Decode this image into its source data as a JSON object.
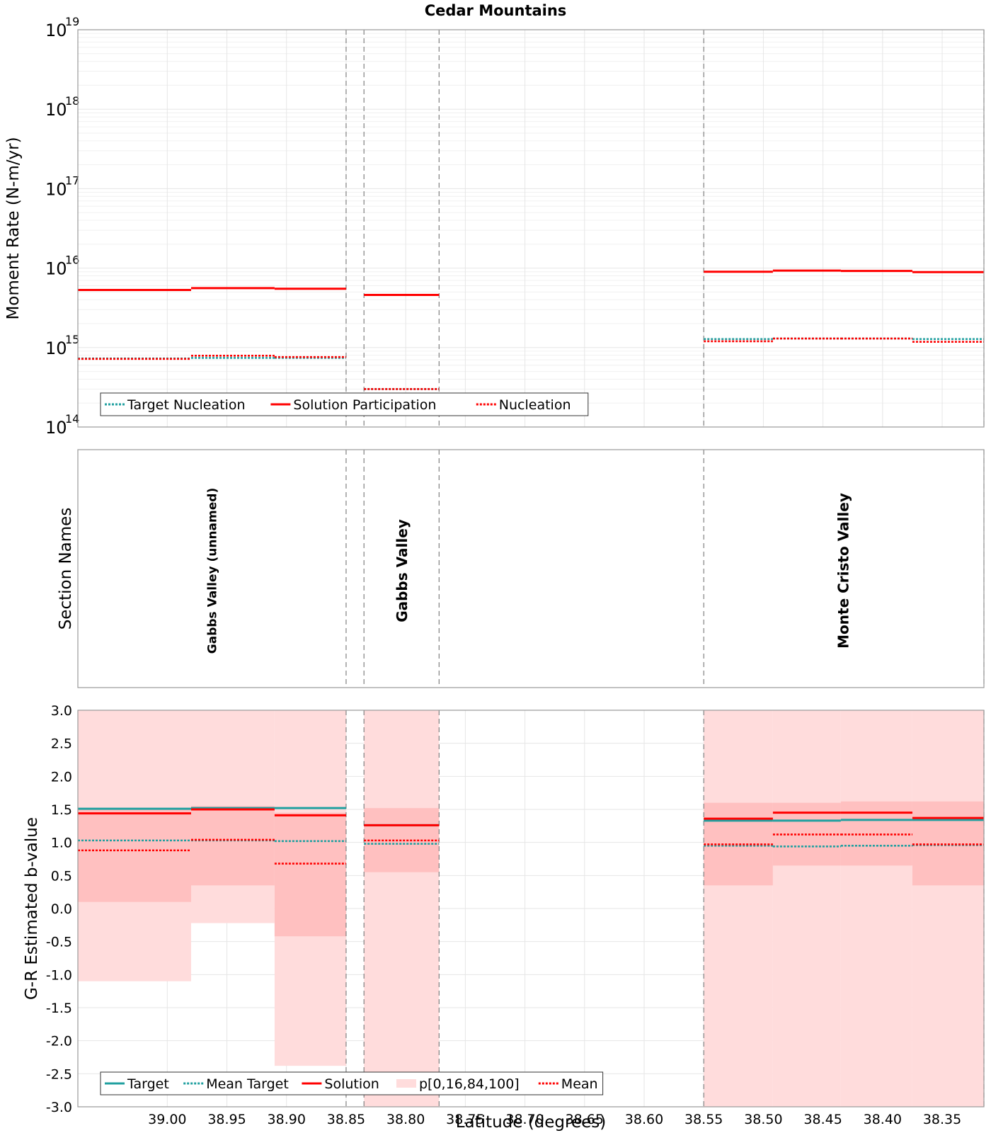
{
  "title": "Cedar Mountains",
  "colors": {
    "target": "#20a0a0",
    "solution": "#ff0000",
    "band_outer": "#ffdcdc",
    "band_inner": "#ffc0c0",
    "divider": "#808080",
    "grid": "#e6e6e6",
    "axis": "#999999"
  },
  "chart_data": [
    {
      "type": "line",
      "id": "moment",
      "ylabel": "Moment Rate (N-m/yr)",
      "yscale": "log",
      "ylim": [
        100000000000000.0,
        1e+19
      ],
      "xlim": [
        39.075,
        38.315
      ],
      "ytick_exponents": [
        "14",
        "15",
        "16",
        "17",
        "18",
        "19"
      ],
      "legend": {
        "placement": "bottom-left",
        "entries": [
          {
            "label": "Target Nucleation",
            "style": "dotted",
            "color": "#20a0a0"
          },
          {
            "label": "Solution Participation",
            "style": "solid",
            "color": "#ff0000"
          },
          {
            "label": "Nucleation",
            "style": "dotted",
            "color": "#ff0000"
          }
        ]
      },
      "series": [
        {
          "name": "Target Nucleation",
          "style": "dotted",
          "color": "#20a0a0",
          "segments": [
            [
              39.075,
              38.98,
              730000000000000.0
            ],
            [
              38.98,
              38.91,
              740000000000000.0
            ],
            [
              38.91,
              38.85,
              740000000000000.0
            ],
            [
              38.835,
              38.772,
              300000000000000.0
            ],
            [
              38.55,
              38.492,
              1280000000000000.0
            ],
            [
              38.492,
              38.435,
              1300000000000000.0
            ],
            [
              38.435,
              38.375,
              1300000000000000.0
            ],
            [
              38.375,
              38.315,
              1280000000000000.0
            ]
          ]
        },
        {
          "name": "Solution Participation",
          "style": "solid",
          "color": "#ff0000",
          "segments": [
            [
              39.075,
              38.98,
              5300000000000000.0
            ],
            [
              38.98,
              38.91,
              5600000000000000.0
            ],
            [
              38.91,
              38.85,
              5500000000000000.0
            ],
            [
              38.835,
              38.772,
              4600000000000000.0
            ],
            [
              38.55,
              38.492,
              9000000000000000.0
            ],
            [
              38.492,
              38.435,
              9300000000000000.0
            ],
            [
              38.435,
              38.375,
              9200000000000000.0
            ],
            [
              38.375,
              38.315,
              8900000000000000.0
            ]
          ]
        },
        {
          "name": "Nucleation",
          "style": "dotted",
          "color": "#ff0000",
          "segments": [
            [
              39.075,
              38.98,
              720000000000000.0
            ],
            [
              38.98,
              38.91,
              790000000000000.0
            ],
            [
              38.91,
              38.85,
              760000000000000.0
            ],
            [
              38.835,
              38.772,
              300000000000000.0
            ],
            [
              38.55,
              38.492,
              1200000000000000.0
            ],
            [
              38.492,
              38.435,
              1300000000000000.0
            ],
            [
              38.435,
              38.375,
              1300000000000000.0
            ],
            [
              38.375,
              38.315,
              1180000000000000.0
            ]
          ]
        }
      ]
    },
    {
      "type": "table",
      "id": "sections",
      "ylabel": "Section Names",
      "xlim": [
        39.075,
        38.315
      ],
      "sections": [
        {
          "name": "Gabbs Valley (unnamed)",
          "x": 38.963
        },
        {
          "name": "Gabbs Valley",
          "x": 38.803
        },
        {
          "name": "Monte Cristo Valley",
          "x": 38.433
        }
      ]
    },
    {
      "type": "line",
      "id": "bvalue",
      "ylabel": "G-R Estimated b-value",
      "xlabel": "Latitude (degrees)",
      "ylim": [
        -3.0,
        3.0
      ],
      "xlim": [
        39.075,
        38.315
      ],
      "yticks": [
        "3.0",
        "2.5",
        "2.0",
        "1.5",
        "1.0",
        "0.5",
        "0.0",
        "-0.5",
        "-1.0",
        "-1.5",
        "-2.0",
        "-2.5",
        "-3.0"
      ],
      "xticks": [
        "39.00",
        "38.95",
        "38.90",
        "38.85",
        "38.80",
        "38.75",
        "38.70",
        "38.65",
        "38.60",
        "38.55",
        "38.50",
        "38.45",
        "38.40",
        "38.35"
      ],
      "legend": {
        "placement": "bottom-left",
        "entries": [
          {
            "label": "Target",
            "style": "solid",
            "color": "#20a0a0"
          },
          {
            "label": "Mean Target",
            "style": "dotted",
            "color": "#20a0a0"
          },
          {
            "label": "Solution",
            "style": "solid",
            "color": "#ff0000"
          },
          {
            "label": "p[0,16,84,100]",
            "style": "band",
            "color": "#ffdcdc"
          },
          {
            "label": "Mean",
            "style": "dotted",
            "color": "#ff0000"
          }
        ]
      },
      "bands": [
        {
          "x0": 39.075,
          "x1": 38.98,
          "p0": -1.1,
          "p16": 0.1,
          "p84": 1.5,
          "p100": 3.0
        },
        {
          "x0": 38.98,
          "x1": 38.91,
          "p0": -0.22,
          "p16": 0.35,
          "p84": 1.55,
          "p100": 3.0
        },
        {
          "x0": 38.91,
          "x1": 38.85,
          "p0": -2.38,
          "p16": -0.42,
          "p84": 1.45,
          "p100": 3.0
        },
        {
          "x0": 38.835,
          "x1": 38.772,
          "p0": -3.0,
          "p16": 0.55,
          "p84": 1.52,
          "p100": 3.0
        },
        {
          "x0": 38.55,
          "x1": 38.492,
          "p0": -3.0,
          "p16": 0.35,
          "p84": 1.6,
          "p100": 3.0
        },
        {
          "x0": 38.492,
          "x1": 38.435,
          "p0": -3.0,
          "p16": 0.65,
          "p84": 1.6,
          "p100": 3.0
        },
        {
          "x0": 38.435,
          "x1": 38.375,
          "p0": -3.0,
          "p16": 0.65,
          "p84": 1.62,
          "p100": 3.0
        },
        {
          "x0": 38.375,
          "x1": 38.315,
          "p0": -3.0,
          "p16": 0.35,
          "p84": 1.62,
          "p100": 3.0
        }
      ],
      "series": [
        {
          "name": "Target",
          "style": "solid",
          "color": "#20a0a0",
          "segments": [
            [
              39.075,
              38.98,
              1.51
            ],
            [
              38.98,
              38.91,
              1.52
            ],
            [
              38.91,
              38.85,
              1.52
            ],
            [
              38.835,
              38.772,
              1.26
            ],
            [
              38.55,
              38.492,
              1.33
            ],
            [
              38.492,
              38.435,
              1.33
            ],
            [
              38.435,
              38.375,
              1.34
            ],
            [
              38.375,
              38.315,
              1.34
            ]
          ]
        },
        {
          "name": "Mean Target",
          "style": "dotted",
          "color": "#20a0a0",
          "segments": [
            [
              39.075,
              38.98,
              1.03
            ],
            [
              38.98,
              38.91,
              1.03
            ],
            [
              38.91,
              38.85,
              1.02
            ],
            [
              38.835,
              38.772,
              0.98
            ],
            [
              38.55,
              38.492,
              0.95
            ],
            [
              38.492,
              38.435,
              0.94
            ],
            [
              38.435,
              38.375,
              0.95
            ],
            [
              38.375,
              38.315,
              0.96
            ]
          ]
        },
        {
          "name": "Solution",
          "style": "solid",
          "color": "#ff0000",
          "segments": [
            [
              39.075,
              38.98,
              1.44
            ],
            [
              38.98,
              38.91,
              1.5
            ],
            [
              38.91,
              38.85,
              1.41
            ],
            [
              38.835,
              38.772,
              1.26
            ],
            [
              38.55,
              38.492,
              1.36
            ],
            [
              38.492,
              38.435,
              1.45
            ],
            [
              38.435,
              38.375,
              1.45
            ],
            [
              38.375,
              38.315,
              1.37
            ]
          ]
        },
        {
          "name": "Mean",
          "style": "dotted",
          "color": "#ff0000",
          "segments": [
            [
              39.075,
              38.98,
              0.88
            ],
            [
              38.98,
              38.91,
              1.04
            ],
            [
              38.91,
              38.85,
              0.68
            ],
            [
              38.835,
              38.772,
              1.03
            ],
            [
              38.55,
              38.492,
              0.97
            ],
            [
              38.492,
              38.435,
              1.12
            ],
            [
              38.435,
              38.375,
              1.12
            ],
            [
              38.375,
              38.315,
              0.97
            ]
          ]
        }
      ]
    }
  ],
  "dividers": [
    38.85,
    38.835,
    38.772,
    38.55,
    38.315
  ]
}
